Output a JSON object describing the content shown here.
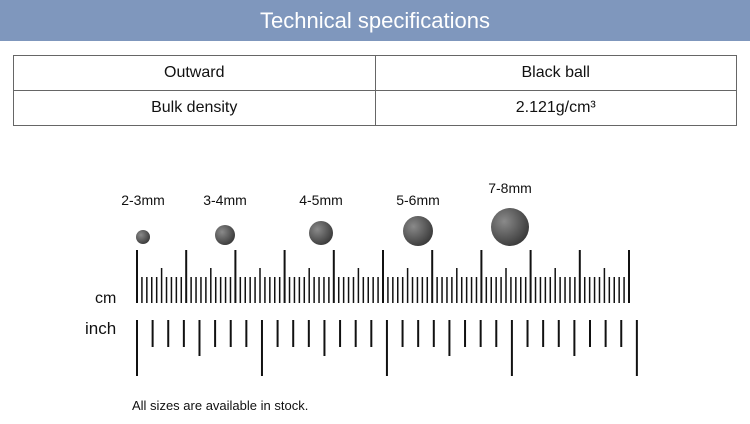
{
  "header": {
    "title": "Technical specifications"
  },
  "table": {
    "rows": [
      [
        "Outward",
        "Black ball"
      ],
      [
        "Bulk density",
        "2.121g/cm³"
      ]
    ]
  },
  "balls": [
    {
      "label": "2-3mm"
    },
    {
      "label": "3-4mm"
    },
    {
      "label": "4-5mm"
    },
    {
      "label": "5-6mm"
    },
    {
      "label": "7-8mm"
    }
  ],
  "ruler": {
    "cm_label": "cm",
    "inch_label": "inch"
  },
  "note": "All sizes are available in stock."
}
